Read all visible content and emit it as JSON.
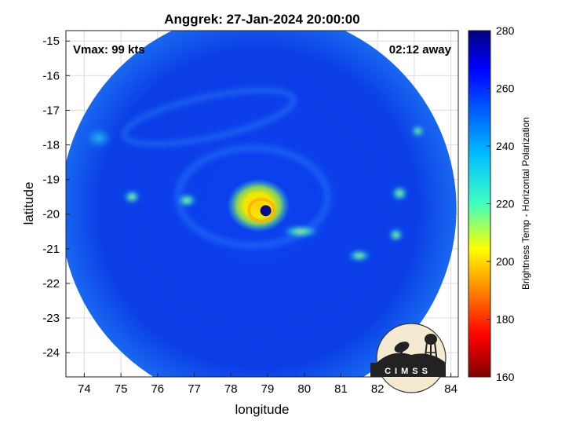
{
  "chart_data": {
    "type": "heatmap",
    "title": "Anggrek: 27-Jan-2024 20:00:00",
    "xlabel": "longitude",
    "ylabel": "latitude",
    "xlim": [
      73.5,
      84.2
    ],
    "ylim": [
      -24.7,
      -14.7
    ],
    "xticks": [
      74,
      75,
      76,
      77,
      78,
      79,
      80,
      81,
      82,
      83,
      84
    ],
    "yticks": [
      -15,
      -16,
      -17,
      -18,
      -19,
      -20,
      -21,
      -22,
      -23,
      -24
    ],
    "grid": true,
    "annotations": {
      "vmax": "Vmax: 99 kts",
      "time_offset": "02:12 away"
    },
    "colorbar": {
      "label": "Brightness Temp - Horizontal Polarization",
      "range": [
        160,
        280
      ],
      "ticks": [
        280,
        260,
        240,
        220,
        200,
        180,
        160
      ],
      "colormap": "jet",
      "colormap_reversed": true
    },
    "swath": {
      "center_lon": 78.75,
      "center_lat": -19.85,
      "radius_deg": 5.4,
      "background_value": 262
    },
    "features": [
      {
        "name": "eye",
        "lon": 78.95,
        "lat": -19.9,
        "value": 270
      },
      {
        "name": "eyewall",
        "lon": 78.75,
        "lat": -19.75,
        "value": 208
      },
      {
        "name": "rainband-south-east",
        "lon": 79.9,
        "lat": -20.5,
        "value": 240
      },
      {
        "name": "rainband-arc-east",
        "lon": 81.5,
        "lat": -21.2,
        "value": 235
      },
      {
        "name": "cell-east",
        "lon": 82.6,
        "lat": -19.4,
        "value": 235
      },
      {
        "name": "cell-northeast",
        "lon": 83.1,
        "lat": -17.6,
        "value": 240
      },
      {
        "name": "cell-west",
        "lon": 76.8,
        "lat": -19.6,
        "value": 238
      },
      {
        "name": "cell-west-far",
        "lon": 75.3,
        "lat": -19.5,
        "value": 240
      },
      {
        "name": "cloud-northwest",
        "lon": 74.4,
        "lat": -17.8,
        "value": 248
      },
      {
        "name": "cell-southeast",
        "lon": 82.5,
        "lat": -20.6,
        "value": 250
      }
    ]
  },
  "logo": {
    "text": "CIMSS"
  }
}
